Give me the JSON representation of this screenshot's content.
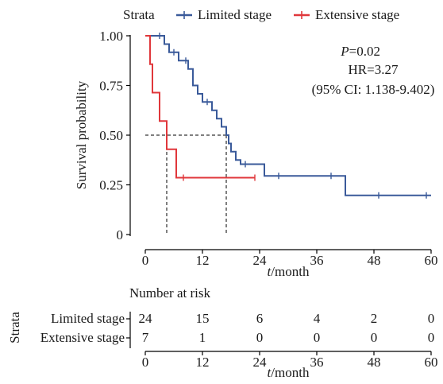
{
  "chart_data": [
    {
      "type": "line",
      "subtype": "kaplan-meier",
      "legend": {
        "placement": "top",
        "title": "Strata",
        "entries": [
          "Limited stage",
          "Extensive stage"
        ]
      },
      "xlabel": "t/month",
      "ylabel": "Survival probability",
      "xlim": [
        0,
        60
      ],
      "ylim": [
        0,
        1
      ],
      "x_ticks": [
        "0",
        "12",
        "24",
        "36",
        "48",
        "60"
      ],
      "y_ticks": [
        "0",
        "0.25",
        "0.50",
        "0.75",
        "1.00"
      ],
      "annotations": {
        "p_label": "P",
        "p_value": "=0.02",
        "hr": "HR=3.27",
        "ci": "(95% CI: 1.138-9.402)"
      },
      "median_survival": [
        {
          "series": "Limited stage",
          "x": 17,
          "y": 0.5
        },
        {
          "series": "Extensive stage",
          "x": 4.5,
          "y": 0.5
        }
      ],
      "series": [
        {
          "name": "Limited stage",
          "color": "#3a5a9a",
          "steps": [
            [
              0,
              1.0
            ],
            [
              4,
              0.958
            ],
            [
              5,
              0.917
            ],
            [
              7,
              0.875
            ],
            [
              9,
              0.833
            ],
            [
              10,
              0.75
            ],
            [
              11,
              0.708
            ],
            [
              12,
              0.667
            ],
            [
              14,
              0.625
            ],
            [
              15,
              0.583
            ],
            [
              16,
              0.542
            ],
            [
              17,
              0.5
            ],
            [
              17.5,
              0.458
            ],
            [
              18,
              0.417
            ],
            [
              19,
              0.375
            ],
            [
              20,
              0.354
            ],
            [
              25,
              0.295
            ],
            [
              42,
              0.197
            ],
            [
              60,
              0.197
            ]
          ],
          "censored": [
            [
              3,
              1.0
            ],
            [
              6,
              0.917
            ],
            [
              8.5,
              0.875
            ],
            [
              13,
              0.667
            ],
            [
              21,
              0.354
            ],
            [
              28,
              0.295
            ],
            [
              39,
              0.295
            ],
            [
              49,
              0.197
            ],
            [
              59,
              0.197
            ]
          ]
        },
        {
          "name": "Extensive stage",
          "color": "#e0373b",
          "steps": [
            [
              0,
              1.0
            ],
            [
              1,
              0.857
            ],
            [
              1.5,
              0.714
            ],
            [
              3,
              0.571
            ],
            [
              4.5,
              0.429
            ],
            [
              6.5,
              0.286
            ],
            [
              23,
              0.286
            ]
          ],
          "censored": [
            [
              8,
              0.286
            ],
            [
              23,
              0.286
            ]
          ]
        }
      ]
    },
    {
      "type": "table",
      "title": "Number at risk",
      "row_axis_label": "Strata",
      "xlabel": "t/month",
      "x_ticks": [
        "0",
        "12",
        "24",
        "36",
        "48",
        "60"
      ],
      "rows": [
        {
          "name": "Limited stage",
          "color": "#3a5a9a",
          "values": [
            "24",
            "15",
            "6",
            "4",
            "2",
            "0"
          ]
        },
        {
          "name": "Extensive stage",
          "color": "#e0373b",
          "values": [
            "7",
            "1",
            "0",
            "0",
            "0",
            "0"
          ]
        }
      ]
    }
  ]
}
